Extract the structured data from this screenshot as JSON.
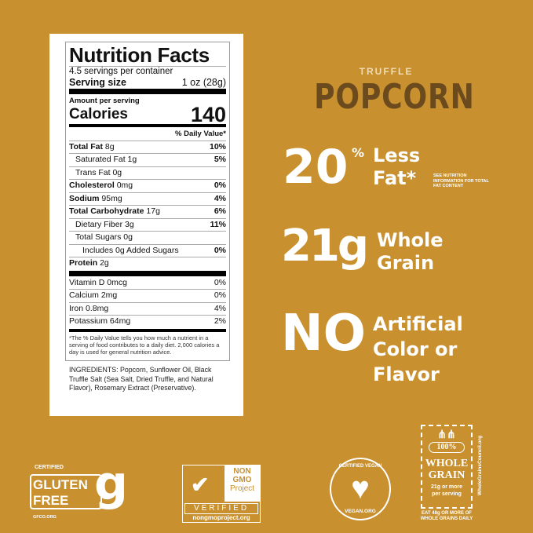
{
  "nutrition": {
    "title": "Nutrition Facts",
    "servings": "4.5 servings per container",
    "serving_size_label": "Serving size",
    "serving_size_value": "1 oz (28g)",
    "amount_per_serving": "Amount per serving",
    "calories_label": "Calories",
    "calories_value": "140",
    "dv_header": "% Daily Value*",
    "rows": [
      {
        "label": "Total Fat",
        "amount": "8g",
        "dv": "10%"
      },
      {
        "label": "Saturated Fat",
        "amount": "1g",
        "dv": "5%"
      },
      {
        "label": "Trans Fat",
        "amount": "0g",
        "dv": ""
      },
      {
        "label": "Cholesterol",
        "amount": "0mg",
        "dv": "0%"
      },
      {
        "label": "Sodium",
        "amount": "95mg",
        "dv": "4%"
      },
      {
        "label": "Total Carbohydrate",
        "amount": "17g",
        "dv": "6%"
      },
      {
        "label": "Dietary Fiber",
        "amount": "3g",
        "dv": "11%"
      },
      {
        "label": "Total Sugars",
        "amount": "0g",
        "dv": ""
      },
      {
        "label": "Includes 0g Added Sugars",
        "amount": "",
        "dv": "0%"
      },
      {
        "label": "Protein",
        "amount": "2g",
        "dv": ""
      }
    ],
    "micros": [
      {
        "label": "Vitamin D 0mcg",
        "dv": "0%"
      },
      {
        "label": "Calcium 2mg",
        "dv": "0%"
      },
      {
        "label": "Iron 0.8mg",
        "dv": "4%"
      },
      {
        "label": "Potassium 64mg",
        "dv": "2%"
      }
    ],
    "footnote": "*The % Daily Value tells you how much a nutrient in a serving of food contributes to a daily diet. 2,000 calories a day is used for general nutrition advice.",
    "ingredients": "INGREDIENTS: Popcorn, Sunflower Oil, Black Truffle Salt (Sea Salt, Dried Truffle, and Natural Flavor), Rosemary Extract (Preservative)."
  },
  "brand": {
    "flavor": "TRUFFLE",
    "product": "POPCORN"
  },
  "claims": {
    "fat_number": "20",
    "fat_percent": "%",
    "fat_line1": "Less",
    "fat_line2": "Fat*",
    "fat_note": "SEE NUTRITION INFORMATION FOR TOTAL FAT CONTENT",
    "grain_number": "21g",
    "grain_line1": "Whole",
    "grain_line2": "Grain",
    "no_word": "NO",
    "no_line1": "Artificial",
    "no_line2": "Color or",
    "no_line3": "Flavor"
  },
  "badges": {
    "gluten": {
      "top": "CERTIFIED",
      "line1": "GLUTEN",
      "line2": "FREE",
      "url": "GFCO.ORG"
    },
    "nongmo": {
      "line1": "NON",
      "line2": "GMO",
      "line3": "Project",
      "verified": "VERIFIED",
      "url": "nongmoproject.org"
    },
    "vegan": {
      "top": "CERTIFIED VEGAN",
      "bottom": "VEGAN.ORG"
    },
    "wholegrain": {
      "pct": "100%",
      "line1": "WHOLE",
      "line2": "GRAIN",
      "line3": "21g or more",
      "line4": "per serving",
      "side": "WholeGrainsCouncil.org",
      "bottom": "EAT 48g OR MORE OF WHOLE GRAINS DAILY"
    }
  },
  "colors": {
    "background": "#c8902e",
    "brand_brown": "#6b4a1e",
    "white": "#ffffff"
  }
}
